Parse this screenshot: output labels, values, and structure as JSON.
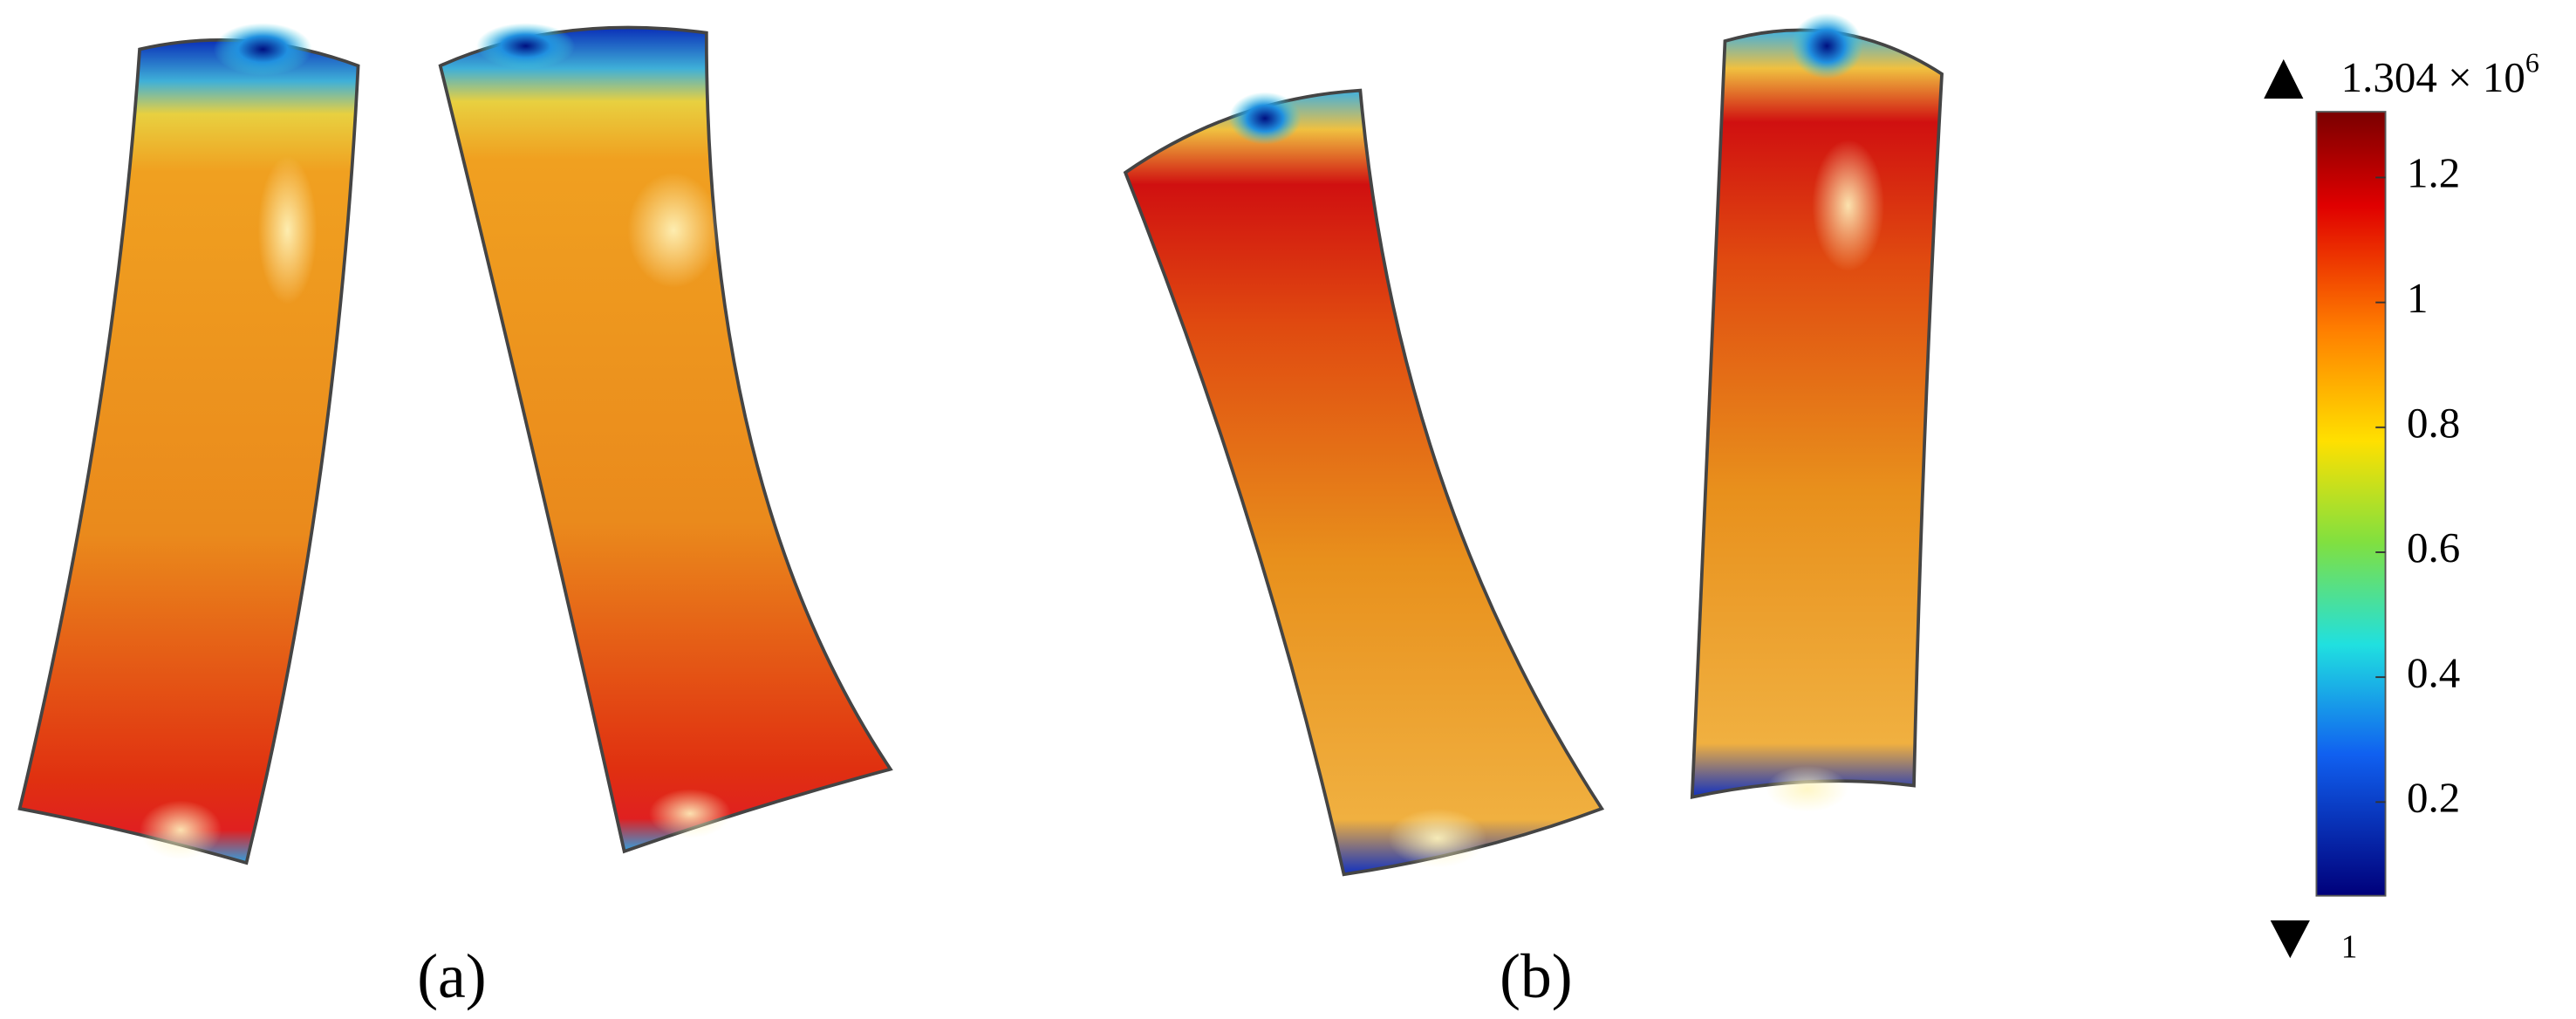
{
  "panels": [
    {
      "label": "(a)"
    },
    {
      "label": "(b)"
    }
  ],
  "colorbar": {
    "max_label": "1.304 × 10",
    "max_exponent": "6",
    "min_label": "1",
    "ticks": [
      1.2,
      1,
      0.8,
      0.6,
      0.4,
      0.2
    ]
  }
}
